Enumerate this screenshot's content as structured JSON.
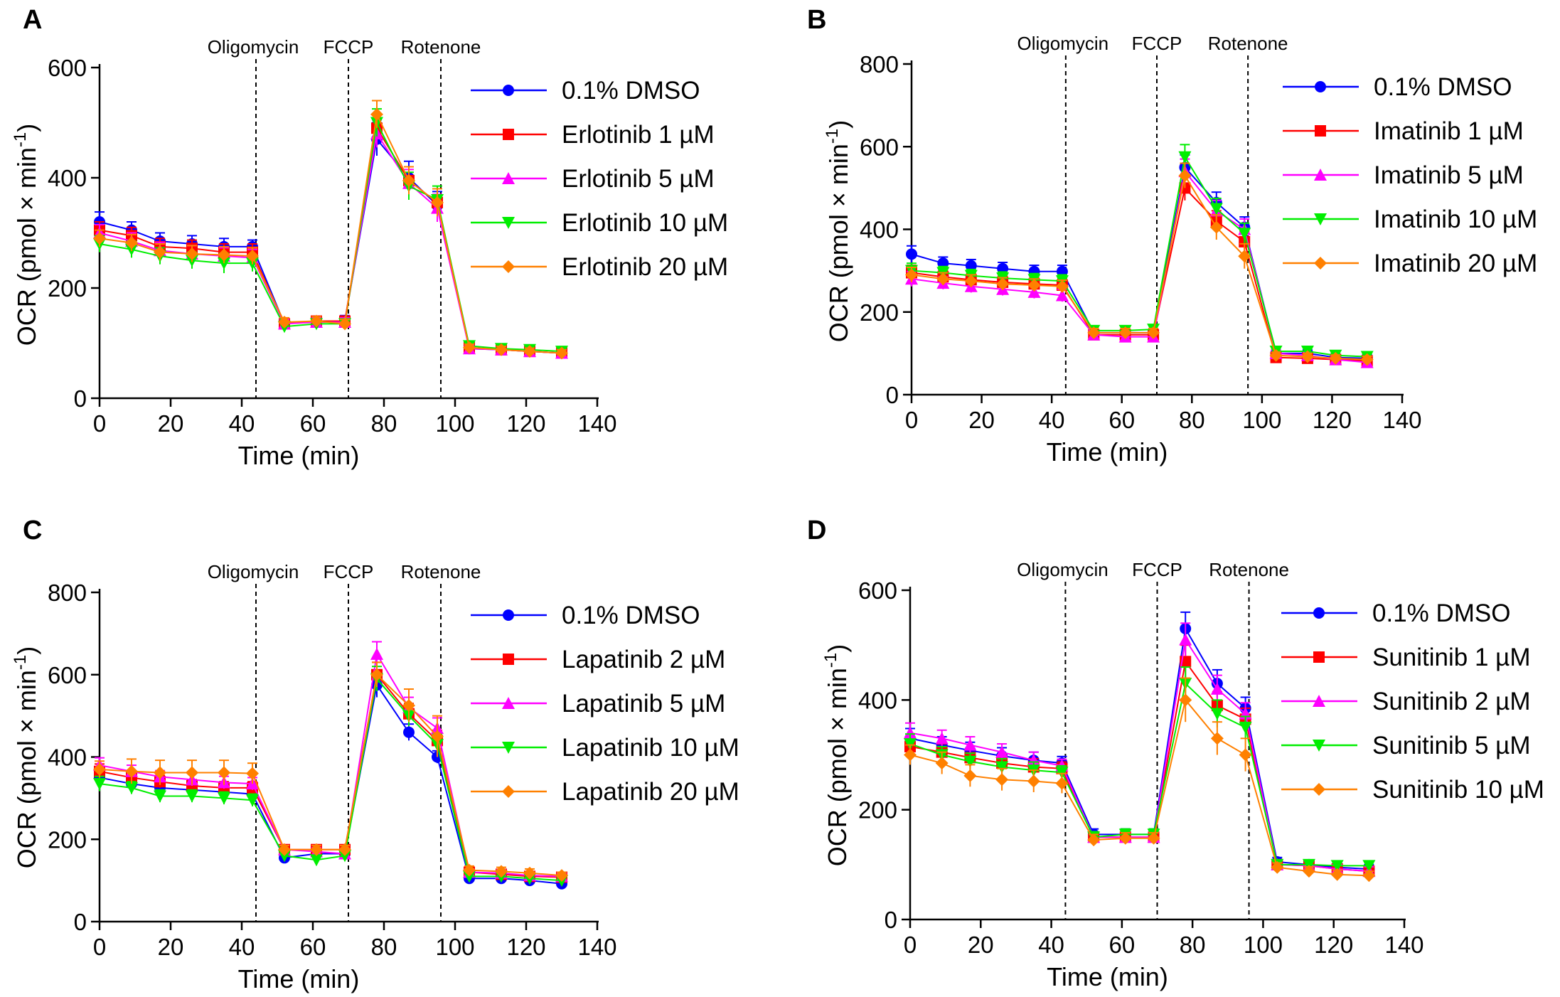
{
  "figure": {
    "y_axis_label_main": "OCR (pmol × min",
    "y_axis_label_sup": "-1",
    "y_axis_label_close": ")"
  },
  "series_colors": {
    "blue": "#0000ff",
    "red": "#ff0000",
    "magenta": "#ff00ff",
    "green": "#00ee00",
    "orange": "#ff8000"
  },
  "chart_data": [
    {
      "panel": "A",
      "type": "line",
      "xlabel": "Time (min)",
      "ylabel": "OCR (pmol × min-1)",
      "xlim": [
        0,
        140
      ],
      "ylim": [
        0,
        600
      ],
      "xticks": [
        0,
        20,
        40,
        60,
        80,
        100,
        120,
        140
      ],
      "yticks": [
        0,
        200,
        400,
        600
      ],
      "annotations": [
        {
          "label": "Oligomycin",
          "x": 44
        },
        {
          "label": "FCCP",
          "x": 70
        },
        {
          "label": "Rotenone",
          "x": 96
        }
      ],
      "x": [
        0,
        9,
        17,
        26,
        35,
        43,
        52,
        61,
        69,
        78,
        87,
        95,
        104,
        113,
        121,
        130
      ],
      "series": [
        {
          "name": "0.1% DMSO",
          "color": "#0000ff",
          "marker": "circle",
          "values": [
            320,
            305,
            285,
            280,
            275,
            275,
            135,
            140,
            140,
            470,
            400,
            350,
            90,
            88,
            85,
            82
          ],
          "errors": [
            18,
            15,
            15,
            15,
            15,
            12,
            8,
            8,
            10,
            30,
            30,
            25,
            8,
            6,
            6,
            6
          ]
        },
        {
          "name": "Erlotinib 1 µM",
          "color": "#ff0000",
          "marker": "square",
          "values": [
            305,
            295,
            275,
            272,
            265,
            265,
            135,
            140,
            140,
            490,
            395,
            355,
            92,
            88,
            85,
            82
          ],
          "errors": [
            15,
            15,
            15,
            15,
            15,
            15,
            8,
            8,
            8,
            25,
            25,
            25,
            6,
            6,
            6,
            6
          ]
        },
        {
          "name": "Erlotinib 5 µM",
          "color": "#ff00ff",
          "marker": "triangle",
          "values": [
            300,
            285,
            268,
            262,
            258,
            255,
            135,
            138,
            138,
            480,
            390,
            345,
            90,
            88,
            85,
            82
          ],
          "errors": [
            15,
            15,
            15,
            15,
            15,
            15,
            8,
            8,
            8,
            25,
            25,
            25,
            6,
            6,
            6,
            6
          ]
        },
        {
          "name": "Erlotinib 10 µM",
          "color": "#00ee00",
          "marker": "triangle-down",
          "values": [
            280,
            270,
            258,
            250,
            245,
            245,
            130,
            135,
            135,
            500,
            385,
            360,
            95,
            90,
            88,
            85
          ],
          "errors": [
            15,
            15,
            15,
            15,
            18,
            15,
            8,
            8,
            8,
            25,
            25,
            25,
            6,
            6,
            6,
            6
          ]
        },
        {
          "name": "Erlotinib 20 µM",
          "color": "#ff8000",
          "marker": "diamond",
          "values": [
            290,
            282,
            265,
            262,
            260,
            258,
            138,
            140,
            135,
            515,
            395,
            355,
            92,
            88,
            85,
            82
          ],
          "errors": [
            15,
            15,
            15,
            15,
            15,
            15,
            8,
            8,
            8,
            25,
            25,
            25,
            6,
            6,
            6,
            6
          ]
        }
      ]
    },
    {
      "panel": "B",
      "type": "line",
      "xlabel": "Time (min)",
      "ylabel": "OCR (pmol × min-1)",
      "xlim": [
        0,
        140
      ],
      "ylim": [
        0,
        800
      ],
      "xticks": [
        0,
        20,
        40,
        60,
        80,
        100,
        120,
        140
      ],
      "yticks": [
        0,
        200,
        400,
        600,
        800
      ],
      "annotations": [
        {
          "label": "Oligomycin",
          "x": 44
        },
        {
          "label": "FCCP",
          "x": 70
        },
        {
          "label": "Rotenone",
          "x": 96
        }
      ],
      "x": [
        0,
        9,
        17,
        26,
        35,
        43,
        52,
        61,
        69,
        78,
        87,
        95,
        104,
        113,
        121,
        130
      ],
      "series": [
        {
          "name": "0.1% DMSO",
          "color": "#0000ff",
          "marker": "circle",
          "values": [
            340,
            318,
            312,
            305,
            298,
            298,
            150,
            150,
            150,
            550,
            465,
            405,
            100,
            100,
            90,
            88
          ],
          "errors": [
            20,
            15,
            15,
            15,
            15,
            15,
            10,
            10,
            10,
            30,
            25,
            25,
            8,
            8,
            8,
            8
          ]
        },
        {
          "name": "Imatinib 1 µM",
          "color": "#ff0000",
          "marker": "square",
          "values": [
            295,
            285,
            278,
            272,
            268,
            265,
            145,
            145,
            145,
            500,
            420,
            370,
            90,
            88,
            85,
            82
          ],
          "errors": [
            18,
            15,
            15,
            15,
            15,
            15,
            10,
            10,
            10,
            30,
            25,
            25,
            8,
            8,
            8,
            8
          ]
        },
        {
          "name": "Imatinib 5 µM",
          "color": "#ff00ff",
          "marker": "triangle",
          "values": [
            280,
            270,
            262,
            255,
            248,
            240,
            145,
            140,
            140,
            540,
            445,
            400,
            100,
            95,
            85,
            78
          ],
          "errors": [
            18,
            15,
            15,
            15,
            15,
            15,
            10,
            10,
            10,
            30,
            25,
            25,
            8,
            8,
            8,
            8
          ]
        },
        {
          "name": "Imatinib 10 µM",
          "color": "#00ee00",
          "marker": "triangle-down",
          "values": [
            300,
            295,
            288,
            282,
            278,
            275,
            155,
            155,
            158,
            575,
            450,
            390,
            105,
            105,
            95,
            92
          ],
          "errors": [
            18,
            15,
            15,
            15,
            15,
            15,
            10,
            10,
            10,
            30,
            25,
            25,
            8,
            8,
            8,
            8
          ]
        },
        {
          "name": "Imatinib 20 µM",
          "color": "#ff8000",
          "marker": "diamond",
          "values": [
            290,
            280,
            275,
            268,
            265,
            262,
            150,
            150,
            150,
            530,
            405,
            335,
            95,
            92,
            88,
            85
          ],
          "errors": [
            18,
            15,
            15,
            15,
            15,
            15,
            10,
            10,
            10,
            30,
            30,
            30,
            8,
            8,
            8,
            8
          ]
        }
      ]
    },
    {
      "panel": "C",
      "type": "line",
      "xlabel": "Time (min)",
      "ylabel": "OCR (pmol × min-1)",
      "xlim": [
        0,
        140
      ],
      "ylim": [
        0,
        800
      ],
      "xticks": [
        0,
        20,
        40,
        60,
        80,
        100,
        120,
        140
      ],
      "yticks": [
        0,
        200,
        400,
        600,
        800
      ],
      "annotations": [
        {
          "label": "Oligomycin",
          "x": 44
        },
        {
          "label": "FCCP",
          "x": 70
        },
        {
          "label": "Rotenone",
          "x": 96
        }
      ],
      "x": [
        0,
        9,
        17,
        26,
        35,
        43,
        52,
        61,
        69,
        78,
        87,
        95,
        104,
        113,
        121,
        130
      ],
      "series": [
        {
          "name": "0.1% DMSO",
          "color": "#0000ff",
          "marker": "circle",
          "values": [
            350,
            335,
            325,
            320,
            315,
            310,
            155,
            165,
            165,
            575,
            460,
            400,
            105,
            105,
            100,
            92
          ],
          "errors": [
            18,
            15,
            15,
            15,
            15,
            15,
            10,
            10,
            10,
            30,
            20,
            15,
            8,
            8,
            8,
            8
          ]
        },
        {
          "name": "Lapatinib 2 µM",
          "color": "#ff0000",
          "marker": "square",
          "values": [
            365,
            350,
            340,
            330,
            325,
            325,
            175,
            175,
            175,
            600,
            505,
            440,
            120,
            115,
            110,
            108
          ],
          "errors": [
            18,
            15,
            15,
            15,
            15,
            15,
            10,
            10,
            10,
            30,
            25,
            25,
            8,
            8,
            8,
            8
          ]
        },
        {
          "name": "Lapatinib 5 µM",
          "color": "#ff00ff",
          "marker": "triangle",
          "values": [
            380,
            365,
            352,
            345,
            338,
            335,
            175,
            170,
            165,
            650,
            520,
            470,
            120,
            118,
            112,
            110
          ],
          "errors": [
            18,
            15,
            15,
            15,
            15,
            15,
            10,
            10,
            10,
            30,
            25,
            25,
            8,
            8,
            8,
            8
          ]
        },
        {
          "name": "Lapatinib 10 µM",
          "color": "#00ee00",
          "marker": "triangle-down",
          "values": [
            335,
            325,
            305,
            305,
            300,
            295,
            160,
            150,
            160,
            590,
            500,
            430,
            110,
            110,
            105,
            100
          ],
          "errors": [
            18,
            15,
            15,
            15,
            15,
            15,
            10,
            10,
            10,
            30,
            25,
            25,
            8,
            8,
            8,
            8
          ]
        },
        {
          "name": "Lapatinib 20 µM",
          "color": "#ff8000",
          "marker": "diamond",
          "values": [
            370,
            365,
            362,
            362,
            362,
            360,
            175,
            175,
            175,
            600,
            525,
            450,
            125,
            122,
            118,
            112
          ],
          "errors": [
            20,
            30,
            30,
            30,
            30,
            25,
            10,
            10,
            10,
            30,
            40,
            50,
            10,
            10,
            10,
            8
          ]
        }
      ]
    },
    {
      "panel": "D",
      "type": "line",
      "xlabel": "Time (min)",
      "ylabel": "OCR (pmol × min-1)",
      "xlim": [
        0,
        140
      ],
      "ylim": [
        0,
        600
      ],
      "xticks": [
        0,
        20,
        40,
        60,
        80,
        100,
        120,
        140
      ],
      "yticks": [
        0,
        200,
        400,
        600
      ],
      "annotations": [
        {
          "label": "Oligomycin",
          "x": 44
        },
        {
          "label": "FCCP",
          "x": 70
        },
        {
          "label": "Rotenone",
          "x": 96
        }
      ],
      "x": [
        0,
        9,
        17,
        26,
        35,
        43,
        52,
        61,
        69,
        78,
        87,
        95,
        104,
        113,
        121,
        130
      ],
      "series": [
        {
          "name": "0.1% DMSO",
          "color": "#0000ff",
          "marker": "circle",
          "values": [
            330,
            318,
            308,
            298,
            290,
            285,
            155,
            155,
            155,
            530,
            430,
            385,
            105,
            100,
            95,
            92
          ],
          "errors": [
            18,
            15,
            15,
            15,
            15,
            12,
            10,
            10,
            10,
            30,
            25,
            20,
            8,
            8,
            8,
            8
          ]
        },
        {
          "name": "Sunitinib 1 µM",
          "color": "#ff0000",
          "marker": "square",
          "values": [
            315,
            305,
            295,
            285,
            278,
            275,
            150,
            150,
            150,
            470,
            390,
            365,
            100,
            98,
            92,
            88
          ],
          "errors": [
            18,
            15,
            15,
            15,
            15,
            12,
            10,
            10,
            10,
            30,
            25,
            20,
            8,
            8,
            8,
            8
          ]
        },
        {
          "name": "Sunitinib 2 µM",
          "color": "#ff00ff",
          "marker": "triangle",
          "values": [
            340,
            330,
            318,
            305,
            290,
            280,
            150,
            150,
            150,
            510,
            420,
            375,
            100,
            98,
            92,
            88
          ],
          "errors": [
            18,
            15,
            15,
            15,
            15,
            12,
            10,
            10,
            10,
            30,
            25,
            20,
            8,
            8,
            8,
            8
          ]
        },
        {
          "name": "Sunitinib 5 µM",
          "color": "#00ee00",
          "marker": "triangle-down",
          "values": [
            320,
            300,
            288,
            278,
            272,
            268,
            150,
            155,
            155,
            430,
            375,
            350,
            100,
            100,
            98,
            98
          ],
          "errors": [
            18,
            15,
            15,
            15,
            15,
            12,
            10,
            10,
            10,
            30,
            25,
            20,
            8,
            8,
            8,
            8
          ]
        },
        {
          "name": "Sunitinib 10 µM",
          "color": "#ff8000",
          "marker": "diamond",
          "values": [
            300,
            285,
            262,
            255,
            252,
            248,
            145,
            148,
            148,
            400,
            330,
            300,
            95,
            88,
            82,
            80
          ],
          "errors": [
            18,
            20,
            20,
            20,
            20,
            18,
            10,
            10,
            10,
            40,
            30,
            30,
            8,
            8,
            8,
            8
          ]
        }
      ]
    }
  ]
}
